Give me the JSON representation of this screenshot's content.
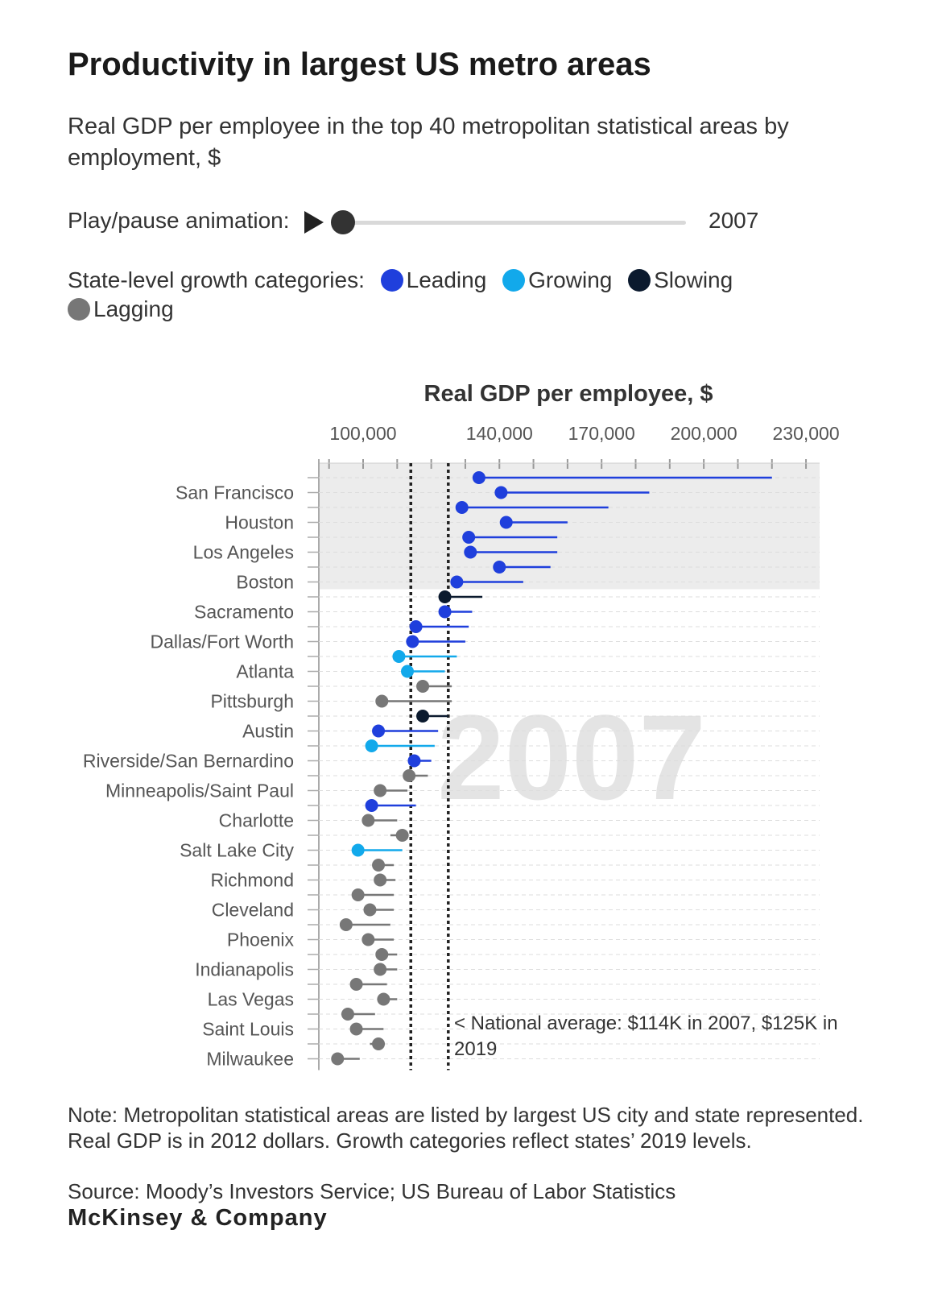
{
  "header": {
    "title": "Productivity in largest US metro areas",
    "subtitle": "Real GDP per employee in the top 40 metropolitan statistical areas by employment, $"
  },
  "animation": {
    "label": "Play/pause animation:",
    "year": "2007"
  },
  "legend": {
    "label": "State-level growth categories:",
    "items": [
      {
        "name": "Leading",
        "color": "#1f3fdc"
      },
      {
        "name": "Growing",
        "color": "#12a9eb"
      },
      {
        "name": "Slowing",
        "color": "#0b1a2e"
      },
      {
        "name": "Lagging",
        "color": "#777777"
      }
    ]
  },
  "chart_data": {
    "type": "dot-range",
    "title": "Real GDP per employee, $",
    "watermark": "2007",
    "xlim": [
      87000,
      234000
    ],
    "x_ticks": [
      100000,
      140000,
      170000,
      200000,
      230000
    ],
    "x_tick_labels": [
      "100,000",
      "140,000",
      "170,000",
      "200,000",
      "230,000"
    ],
    "reference_lines": [
      114000,
      125000
    ],
    "annotation": "< National average: $114K in 2007, $125K in 2019",
    "labeled_rows": [
      "San Francisco",
      "Houston",
      "Los Angeles",
      "Boston",
      "Sacramento",
      "Dallas/Fort Worth",
      "Atlanta",
      "Pittsburgh",
      "Austin",
      "Riverside/San Bernardino",
      "Minneapolis/Saint Paul",
      "Charlotte",
      "Salt Lake City",
      "Richmond",
      "Cleveland",
      "Phoenix",
      "Indianapolis",
      "Las Vegas",
      "Saint Louis",
      "Milwaukee"
    ],
    "series": [
      {
        "category": "Leading",
        "value_2007": 134000,
        "value_2019": 220000
      },
      {
        "category": "Leading",
        "value_2007": 140500,
        "value_2019": 184000
      },
      {
        "category": "Leading",
        "value_2007": 129000,
        "value_2019": 172000
      },
      {
        "category": "Leading",
        "value_2007": 142000,
        "value_2019": 160000
      },
      {
        "category": "Leading",
        "value_2007": 131000,
        "value_2019": 157000
      },
      {
        "category": "Leading",
        "value_2007": 131500,
        "value_2019": 157000
      },
      {
        "category": "Leading",
        "value_2007": 140000,
        "value_2019": 155000
      },
      {
        "category": "Leading",
        "value_2007": 127500,
        "value_2019": 147000
      },
      {
        "category": "Slowing",
        "value_2007": 124000,
        "value_2019": 135000
      },
      {
        "category": "Leading",
        "value_2007": 124000,
        "value_2019": 132000
      },
      {
        "category": "Leading",
        "value_2007": 115500,
        "value_2019": 131000
      },
      {
        "category": "Leading",
        "value_2007": 114500,
        "value_2019": 130000
      },
      {
        "category": "Growing",
        "value_2007": 110500,
        "value_2019": 127500
      },
      {
        "category": "Growing",
        "value_2007": 113000,
        "value_2019": 124000
      },
      {
        "category": "Lagging",
        "value_2007": 117500,
        "value_2019": 126000
      },
      {
        "category": "Lagging",
        "value_2007": 105500,
        "value_2019": 126000
      },
      {
        "category": "Slowing",
        "value_2007": 117500,
        "value_2019": 125000
      },
      {
        "category": "Leading",
        "value_2007": 104500,
        "value_2019": 122000
      },
      {
        "category": "Growing",
        "value_2007": 102500,
        "value_2019": 121000
      },
      {
        "category": "Leading",
        "value_2007": 115000,
        "value_2019": 120000
      },
      {
        "category": "Lagging",
        "value_2007": 113500,
        "value_2019": 119000
      },
      {
        "category": "Lagging",
        "value_2007": 105000,
        "value_2019": 113000
      },
      {
        "category": "Leading",
        "value_2007": 102500,
        "value_2019": 115500
      },
      {
        "category": "Lagging",
        "value_2007": 101500,
        "value_2019": 110000
      },
      {
        "category": "Lagging",
        "value_2007": 111500,
        "value_2019": 108000
      },
      {
        "category": "Growing",
        "value_2007": 98500,
        "value_2019": 111500
      },
      {
        "category": "Lagging",
        "value_2007": 104500,
        "value_2019": 109000
      },
      {
        "category": "Lagging",
        "value_2007": 105000,
        "value_2019": 109500
      },
      {
        "category": "Lagging",
        "value_2007": 98500,
        "value_2019": 109000
      },
      {
        "category": "Lagging",
        "value_2007": 102000,
        "value_2019": 109000
      },
      {
        "category": "Lagging",
        "value_2007": 95000,
        "value_2019": 108000
      },
      {
        "category": "Lagging",
        "value_2007": 101500,
        "value_2019": 109000
      },
      {
        "category": "Lagging",
        "value_2007": 105500,
        "value_2019": 110000
      },
      {
        "category": "Lagging",
        "value_2007": 105000,
        "value_2019": 110000
      },
      {
        "category": "Lagging",
        "value_2007": 98000,
        "value_2019": 107000
      },
      {
        "category": "Lagging",
        "value_2007": 106000,
        "value_2019": 110000
      },
      {
        "category": "Lagging",
        "value_2007": 95500,
        "value_2019": 103500
      },
      {
        "category": "Lagging",
        "value_2007": 98000,
        "value_2019": 106000
      },
      {
        "category": "Lagging",
        "value_2007": 104500,
        "value_2019": 102000
      },
      {
        "category": "Lagging",
        "value_2007": 92500,
        "value_2019": 99000
      }
    ]
  },
  "footer": {
    "note": "Note: Metropolitan statistical areas are listed by largest US city and state represented. Real GDP is in 2012 dollars. Growth categories reflect states’ 2019 levels.",
    "source": "Source: Moody’s Investors Service; US Bureau of Labor Statistics",
    "brand": "McKinsey & Company"
  }
}
